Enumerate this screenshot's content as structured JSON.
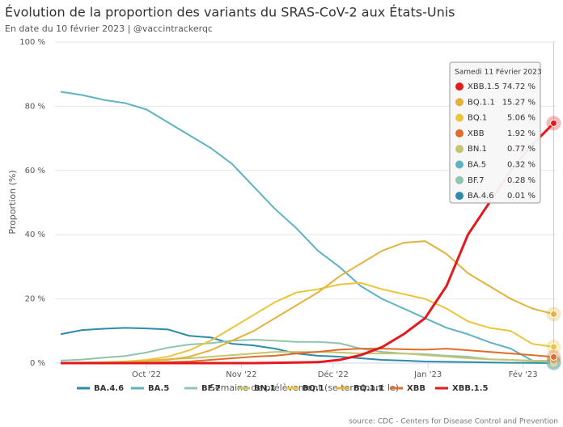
{
  "chart_data": {
    "type": "line",
    "title": "Évolution de la proportion des variants du SRAS-CoV-2 aux États-Unis",
    "subtitle": "En date du 10 février 2023 | @vaccintrackerqc",
    "x_label": "Semaine de prélèvement (se terminant le)",
    "y_label": "Proportion (%)",
    "source": "source: CDC - Centers for Disease Control and Prevention",
    "x": [
      0,
      1,
      2,
      3,
      4,
      5,
      6,
      7,
      8,
      9,
      10,
      11,
      12,
      13,
      14,
      15,
      16,
      17,
      18,
      19,
      20,
      21,
      22,
      23
    ],
    "xlim": [
      0,
      23
    ],
    "xticks": [
      {
        "value": 4,
        "label": "Oct '22"
      },
      {
        "value": 8.43,
        "label": "Nov '22"
      },
      {
        "value": 12.71,
        "label": "Déc '22"
      },
      {
        "value": 17.14,
        "label": "Jan '23"
      },
      {
        "value": 21.57,
        "label": "Fév '23"
      }
    ],
    "ylim": [
      0,
      100
    ],
    "yticks": [
      {
        "value": 0,
        "label": "0 %"
      },
      {
        "value": 20,
        "label": "20 %"
      },
      {
        "value": 40,
        "label": "40 %"
      },
      {
        "value": 60,
        "label": "60 %"
      },
      {
        "value": 80,
        "label": "80 %"
      },
      {
        "value": 100,
        "label": "100 %"
      }
    ],
    "grid": true,
    "legend": "bottom",
    "series": [
      {
        "name": "BA.4.6",
        "color": "#2c8ca8",
        "values": [
          9,
          10.3,
          10.7,
          11,
          10.8,
          10.5,
          8.5,
          8,
          6,
          5.5,
          4.5,
          3,
          2.3,
          2,
          1.5,
          1,
          0.8,
          0.5,
          0.4,
          0.3,
          0.2,
          0.1,
          0.05,
          0.01
        ]
      },
      {
        "name": "BA.5",
        "color": "#5fb2c0",
        "values": [
          84.5,
          83.5,
          82,
          81,
          79,
          75,
          71,
          67,
          62,
          55,
          48,
          42,
          35,
          30,
          24,
          20,
          17,
          14,
          11,
          9,
          6.5,
          4.5,
          0.8,
          0.32
        ]
      },
      {
        "name": "BF.7",
        "color": "#8fc4ad",
        "values": [
          0.8,
          1.1,
          1.7,
          2.2,
          3.3,
          4.8,
          5.8,
          6.2,
          7,
          7.3,
          7,
          6.6,
          6.6,
          6.2,
          4.5,
          3.5,
          3,
          2.8,
          2.3,
          2,
          1.2,
          1,
          0.6,
          0.28
        ]
      },
      {
        "name": "BN.1",
        "color": "#c6c56e",
        "values": [
          0.1,
          0.2,
          0.3,
          0.5,
          0.8,
          1.2,
          1.5,
          2,
          2.5,
          3,
          3.5,
          3.5,
          3.5,
          3.3,
          3,
          3,
          3,
          2.5,
          2,
          1.5,
          1.2,
          1,
          0.8,
          0.77
        ]
      },
      {
        "name": "BQ.1",
        "color": "#ecc53a",
        "values": [
          0,
          0.1,
          0.2,
          0.5,
          1,
          2,
          4,
          7,
          11,
          15,
          19,
          22,
          23,
          24.5,
          25,
          23,
          21.5,
          20,
          17,
          13,
          11,
          10,
          6,
          5.06
        ]
      },
      {
        "name": "BQ.1.1",
        "color": "#e3b23c",
        "values": [
          0,
          0,
          0.1,
          0.3,
          0.6,
          1,
          2,
          4,
          7,
          10,
          14,
          18,
          22,
          27,
          31,
          35,
          37.5,
          38,
          34,
          28,
          24,
          20,
          17,
          15.27
        ]
      },
      {
        "name": "XBB",
        "color": "#e06b2a",
        "values": [
          0,
          0,
          0,
          0,
          0.1,
          0.3,
          0.5,
          1,
          1.5,
          2,
          2.3,
          3,
          3.5,
          4.2,
          4.5,
          4.5,
          4.3,
          4.2,
          4.5,
          4,
          3.5,
          3,
          2.5,
          1.92
        ]
      },
      {
        "name": "XBB.1.5",
        "color": "#e3191c",
        "values": [
          0,
          0,
          0,
          0,
          0,
          0,
          0,
          0,
          0,
          0,
          0.1,
          0.2,
          0.3,
          1,
          2.5,
          5,
          9,
          14,
          24,
          40,
          50,
          60,
          68,
          74.72
        ]
      }
    ],
    "tooltip": {
      "title": "Samedi 11 Février 2023",
      "items": [
        {
          "series": "XBB.1.5",
          "value": 74.72,
          "label": "74.72 %"
        },
        {
          "series": "BQ.1.1",
          "value": 15.27,
          "label": "15.27 %"
        },
        {
          "series": "BQ.1",
          "value": 5.06,
          "label": "5.06 %"
        },
        {
          "series": "XBB",
          "value": 1.92,
          "label": "1.92 %"
        },
        {
          "series": "BN.1",
          "value": 0.77,
          "label": "0.77 %"
        },
        {
          "series": "BA.5",
          "value": 0.32,
          "label": "0.32 %"
        },
        {
          "series": "BF.7",
          "value": 0.28,
          "label": "0.28 %"
        },
        {
          "series": "BA.4.6",
          "value": 0.01,
          "label": "0.01 %"
        }
      ]
    }
  }
}
